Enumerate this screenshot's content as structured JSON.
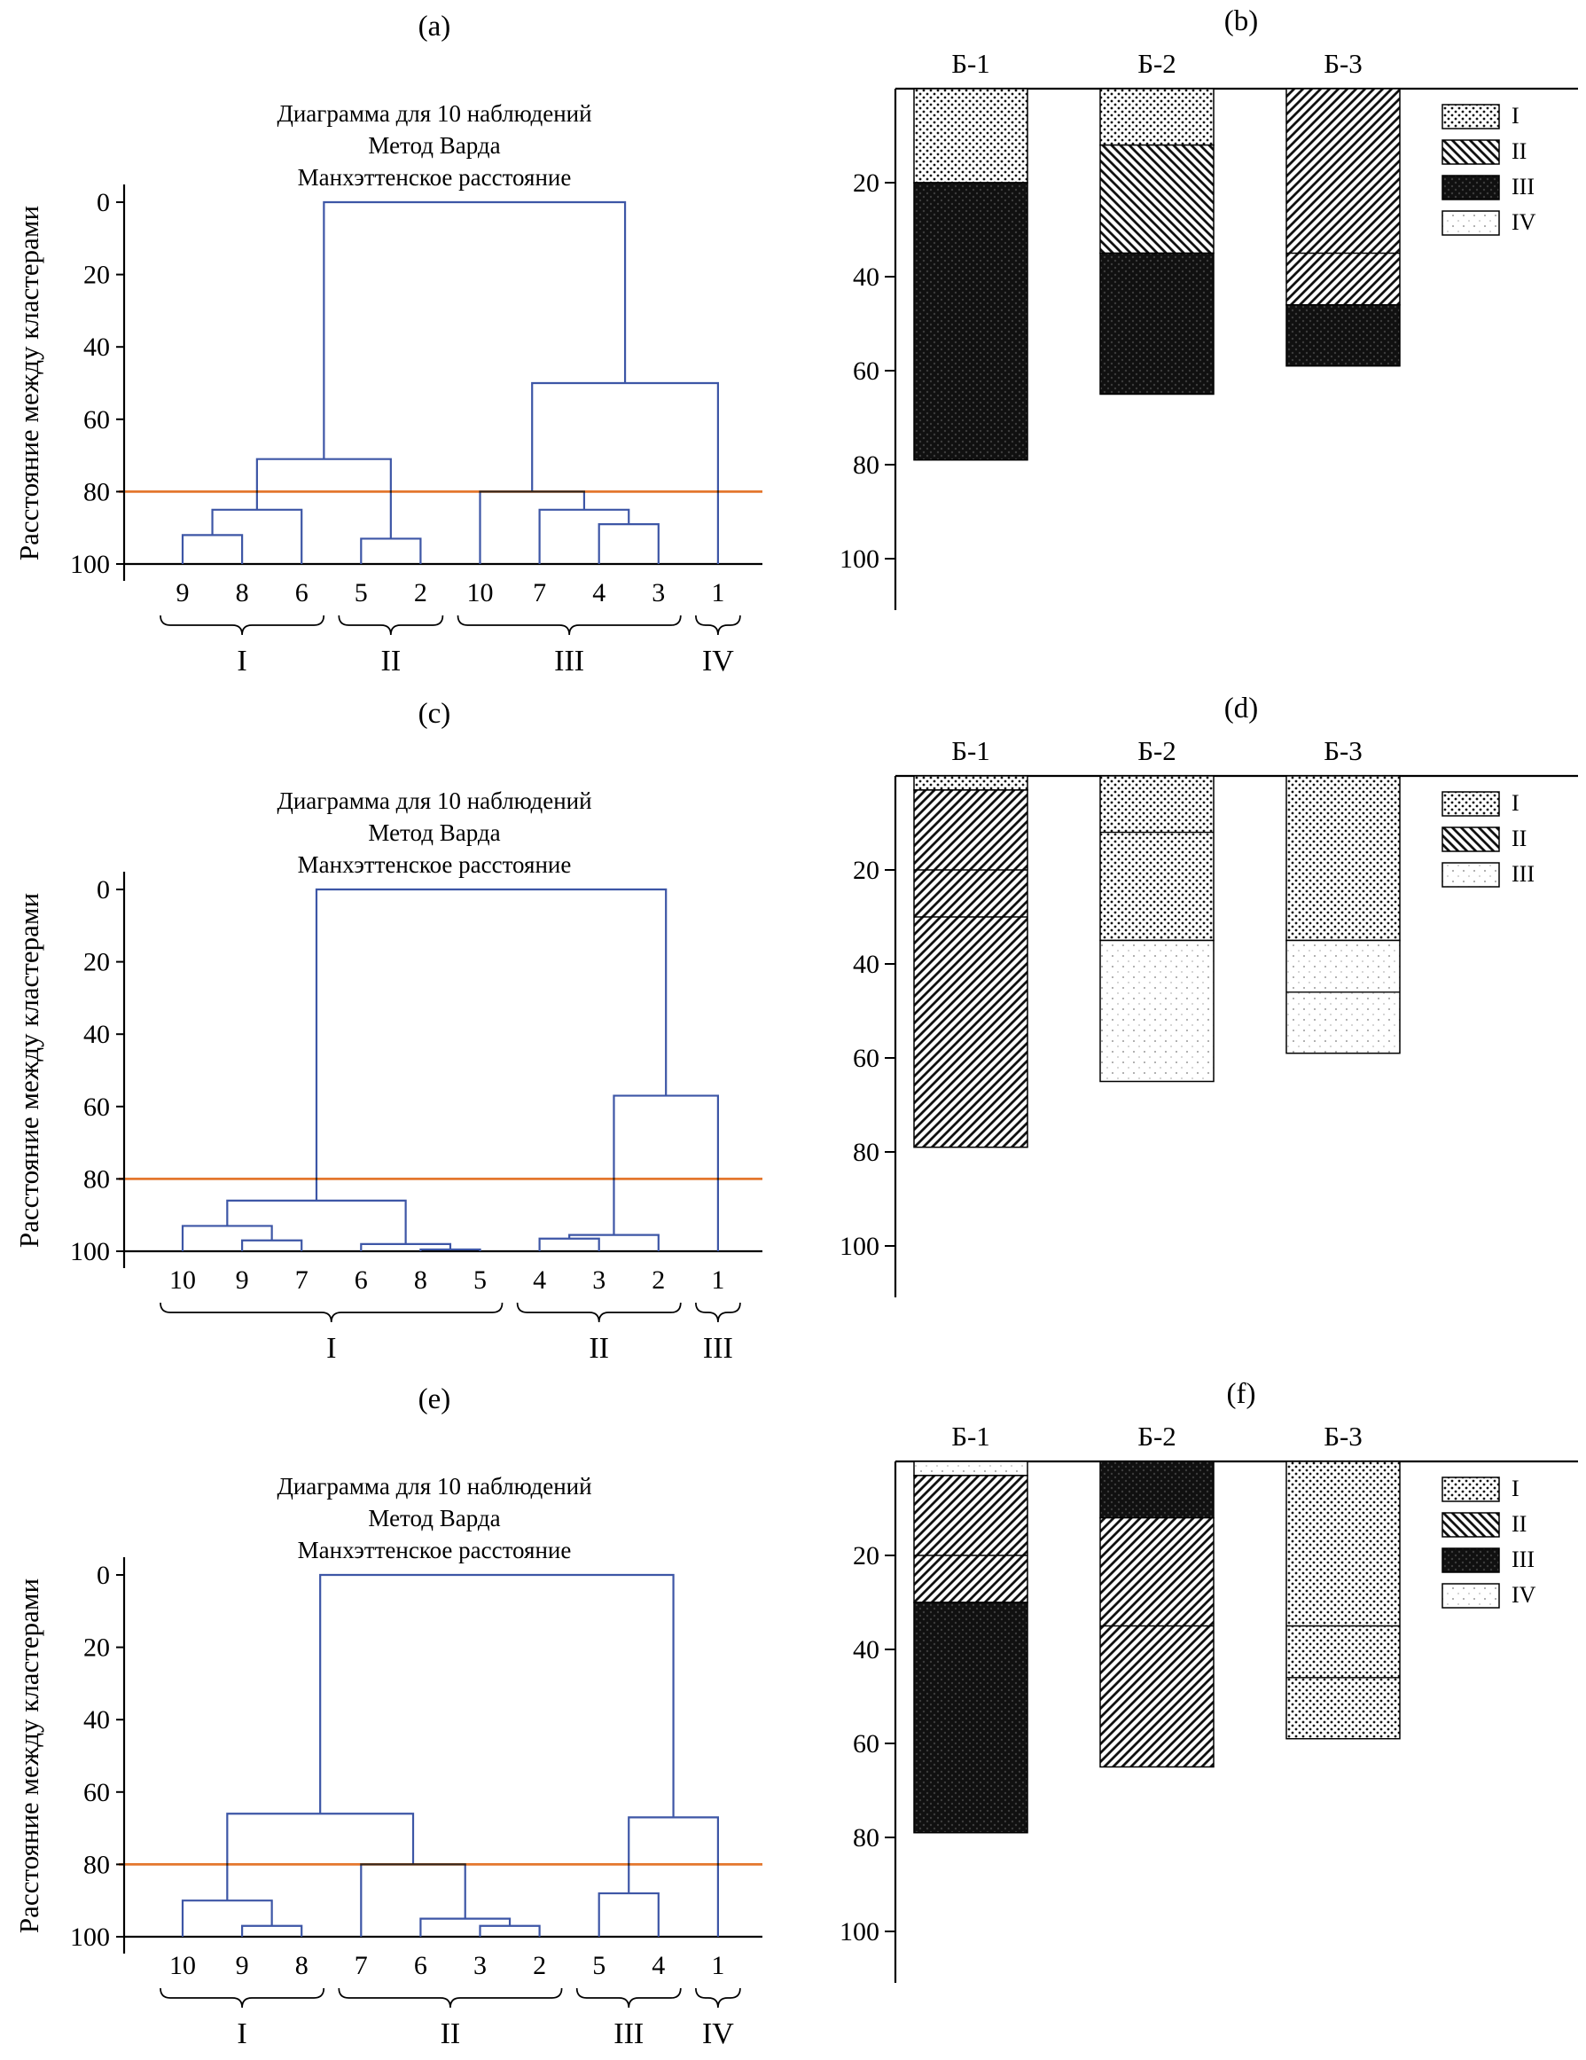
{
  "colors": {
    "background": "#ffffff",
    "dendrogram_line": "#3d56a6",
    "cut_line": "#e4772e",
    "axis": "#000000",
    "pattern_ink": "#111111"
  },
  "dendrogram_shared": {
    "title_lines": [
      "Диаграмма для 10 наблюдений",
      "Метод Варда",
      "Манхэттенское расстояние"
    ],
    "ylabel": "Расстояние между кластерами",
    "yticks": [
      0,
      20,
      40,
      60,
      80,
      100
    ],
    "cut_line_note": "orange horizontal reference line at distance 80"
  },
  "bar_shared": {
    "categories": [
      "Б-1",
      "Б-2",
      "Б-3"
    ],
    "yticks": [
      20,
      40,
      60,
      80,
      100
    ]
  },
  "chart_data": [
    {
      "panel": "(a)",
      "type": "dendrogram",
      "title_lines": [
        "Диаграмма для 10 наблюдений",
        "Метод Варда",
        "Манхэттенское расстояние"
      ],
      "ylabel": "Расстояние между кластерами",
      "yticks": [
        0,
        20,
        40,
        60,
        80,
        100
      ],
      "ylim": [
        0,
        100
      ],
      "y_inverted": true,
      "cut_value": 80,
      "leaves": [
        "9",
        "8",
        "6",
        "5",
        "2",
        "10",
        "7",
        "4",
        "3",
        "1"
      ],
      "merges": [
        {
          "a": "L0",
          "b": "L1",
          "h": 92
        },
        {
          "a": "M0",
          "b": "L2",
          "h": 85
        },
        {
          "a": "L3",
          "b": "L4",
          "h": 93
        },
        {
          "a": "M1",
          "b": "M2",
          "h": 71
        },
        {
          "a": "L7",
          "b": "L8",
          "h": 89
        },
        {
          "a": "L6",
          "b": "M4",
          "h": 85
        },
        {
          "a": "L5",
          "b": "M5",
          "h": 80
        },
        {
          "a": "M6",
          "b": "L9",
          "h": 50
        },
        {
          "a": "M3",
          "b": "M7",
          "h": 0
        }
      ],
      "groups": [
        {
          "label": "I",
          "from": 0,
          "to": 2
        },
        {
          "label": "II",
          "from": 3,
          "to": 4
        },
        {
          "label": "III",
          "from": 5,
          "to": 8
        },
        {
          "label": "IV",
          "from": 9,
          "to": 9
        }
      ]
    },
    {
      "panel": "(b)",
      "type": "bar",
      "stacked": true,
      "y_inverted": true,
      "ylim": [
        0,
        100
      ],
      "yticks": [
        20,
        40,
        60,
        80,
        100
      ],
      "categories": [
        "Б-1",
        "Б-2",
        "Б-3"
      ],
      "legend_position": "top-right",
      "legend": [
        {
          "label": "I",
          "pattern": "dots"
        },
        {
          "label": "II",
          "pattern": "hatch_dn"
        },
        {
          "label": "III",
          "pattern": "black_dots"
        },
        {
          "label": "IV",
          "pattern": "light_dots"
        }
      ],
      "bars": [
        {
          "category": "Б-1",
          "segments": [
            {
              "cluster": "I",
              "pattern": "dots",
              "from": 0,
              "to": 20
            },
            {
              "cluster": "III",
              "pattern": "black_dots",
              "from": 20,
              "to": 79
            }
          ],
          "dividers": []
        },
        {
          "category": "Б-2",
          "segments": [
            {
              "cluster": "I",
              "pattern": "dots",
              "from": 0,
              "to": 12
            },
            {
              "cluster": "II",
              "pattern": "hatch_dn",
              "from": 12,
              "to": 35
            },
            {
              "cluster": "III",
              "pattern": "black_dots",
              "from": 35,
              "to": 65
            }
          ],
          "dividers": []
        },
        {
          "category": "Б-3",
          "segments": [
            {
              "cluster": "II",
              "pattern": "hatch_up",
              "from": 0,
              "to": 46
            },
            {
              "cluster": "III",
              "pattern": "black_dots",
              "from": 46,
              "to": 59
            }
          ],
          "dividers": [
            35
          ]
        }
      ]
    },
    {
      "panel": "(c)",
      "type": "dendrogram",
      "title_lines": [
        "Диаграмма для 10 наблюдений",
        "Метод Варда",
        "Манхэттенское расстояние"
      ],
      "ylabel": "Расстояние между кластерами",
      "yticks": [
        0,
        20,
        40,
        60,
        80,
        100
      ],
      "ylim": [
        0,
        100
      ],
      "y_inverted": true,
      "cut_value": 80,
      "leaves": [
        "10",
        "9",
        "7",
        "6",
        "8",
        "5",
        "4",
        "3",
        "2",
        "1"
      ],
      "merges": [
        {
          "a": "L1",
          "b": "L2",
          "h": 97
        },
        {
          "a": "L0",
          "b": "M0",
          "h": 93
        },
        {
          "a": "L4",
          "b": "L5",
          "h": 99.5
        },
        {
          "a": "L3",
          "b": "M2",
          "h": 98
        },
        {
          "a": "M1",
          "b": "M3",
          "h": 86
        },
        {
          "a": "L6",
          "b": "L7",
          "h": 96.5
        },
        {
          "a": "M5",
          "b": "L8",
          "h": 95.5
        },
        {
          "a": "M6",
          "b": "L9",
          "h": 57
        },
        {
          "a": "M4",
          "b": "M7",
          "h": 0
        }
      ],
      "groups": [
        {
          "label": "I",
          "from": 0,
          "to": 5
        },
        {
          "label": "II",
          "from": 6,
          "to": 8
        },
        {
          "label": "III",
          "from": 9,
          "to": 9
        }
      ]
    },
    {
      "panel": "(d)",
      "type": "bar",
      "stacked": true,
      "y_inverted": true,
      "ylim": [
        0,
        100
      ],
      "yticks": [
        20,
        40,
        60,
        80,
        100
      ],
      "categories": [
        "Б-1",
        "Б-2",
        "Б-3"
      ],
      "legend_position": "top-right",
      "legend": [
        {
          "label": "I",
          "pattern": "dots"
        },
        {
          "label": "II",
          "pattern": "hatch_dn"
        },
        {
          "label": "III",
          "pattern": "light_dots"
        }
      ],
      "bars": [
        {
          "category": "Б-1",
          "segments": [
            {
              "cluster": "I",
              "pattern": "dots",
              "from": 0,
              "to": 3
            },
            {
              "cluster": "II",
              "pattern": "hatch_up",
              "from": 3,
              "to": 79
            }
          ],
          "dividers": [
            20,
            30
          ]
        },
        {
          "category": "Б-2",
          "segments": [
            {
              "cluster": "I",
              "pattern": "dots",
              "from": 0,
              "to": 35
            },
            {
              "cluster": "III",
              "pattern": "light_dots",
              "from": 35,
              "to": 65
            }
          ],
          "dividers": [
            12
          ]
        },
        {
          "category": "Б-3",
          "segments": [
            {
              "cluster": "I",
              "pattern": "dots",
              "from": 0,
              "to": 35
            },
            {
              "cluster": "III",
              "pattern": "light_dots",
              "from": 35,
              "to": 59
            }
          ],
          "dividers": [
            46
          ]
        }
      ]
    },
    {
      "panel": "(e)",
      "type": "dendrogram",
      "title_lines": [
        "Диаграмма для 10 наблюдений",
        "Метод Варда",
        "Манхэттенское расстояние"
      ],
      "ylabel": "Расстояние между кластерами",
      "yticks": [
        0,
        20,
        40,
        60,
        80,
        100
      ],
      "ylim": [
        0,
        100
      ],
      "y_inverted": true,
      "cut_value": 80,
      "leaves": [
        "10",
        "9",
        "8",
        "7",
        "6",
        "3",
        "2",
        "5",
        "4",
        "1"
      ],
      "merges": [
        {
          "a": "L1",
          "b": "L2",
          "h": 97
        },
        {
          "a": "L0",
          "b": "M0",
          "h": 90
        },
        {
          "a": "L5",
          "b": "L6",
          "h": 97
        },
        {
          "a": "L4",
          "b": "M2",
          "h": 95
        },
        {
          "a": "L3",
          "b": "M3",
          "h": 80
        },
        {
          "a": "M1",
          "b": "M4",
          "h": 66
        },
        {
          "a": "L7",
          "b": "L8",
          "h": 88
        },
        {
          "a": "M6",
          "b": "L9",
          "h": 67
        },
        {
          "a": "M5",
          "b": "M7",
          "h": 0
        }
      ],
      "groups": [
        {
          "label": "I",
          "from": 0,
          "to": 2
        },
        {
          "label": "II",
          "from": 3,
          "to": 6
        },
        {
          "label": "III",
          "from": 7,
          "to": 8
        },
        {
          "label": "IV",
          "from": 9,
          "to": 9
        }
      ]
    },
    {
      "panel": "(f)",
      "type": "bar",
      "stacked": true,
      "y_inverted": true,
      "ylim": [
        0,
        100
      ],
      "yticks": [
        20,
        40,
        60,
        80,
        100
      ],
      "categories": [
        "Б-1",
        "Б-2",
        "Б-3"
      ],
      "legend_position": "top-right",
      "legend": [
        {
          "label": "I",
          "pattern": "dots"
        },
        {
          "label": "II",
          "pattern": "hatch_dn"
        },
        {
          "label": "III",
          "pattern": "black_dots"
        },
        {
          "label": "IV",
          "pattern": "light_dots"
        }
      ],
      "bars": [
        {
          "category": "Б-1",
          "segments": [
            {
              "cluster": "IV",
              "pattern": "light_dots",
              "from": 0,
              "to": 3
            },
            {
              "cluster": "II",
              "pattern": "hatch_up",
              "from": 3,
              "to": 30
            },
            {
              "cluster": "III",
              "pattern": "black_dots",
              "from": 30,
              "to": 79
            }
          ],
          "dividers": [
            20
          ]
        },
        {
          "category": "Б-2",
          "segments": [
            {
              "cluster": "III",
              "pattern": "black_dots",
              "from": 0,
              "to": 12
            },
            {
              "cluster": "II",
              "pattern": "hatch_up",
              "from": 12,
              "to": 65
            }
          ],
          "dividers": [
            35
          ]
        },
        {
          "category": "Б-3",
          "segments": [
            {
              "cluster": "I",
              "pattern": "dots",
              "from": 0,
              "to": 59
            }
          ],
          "dividers": [
            35,
            46
          ]
        }
      ]
    }
  ]
}
